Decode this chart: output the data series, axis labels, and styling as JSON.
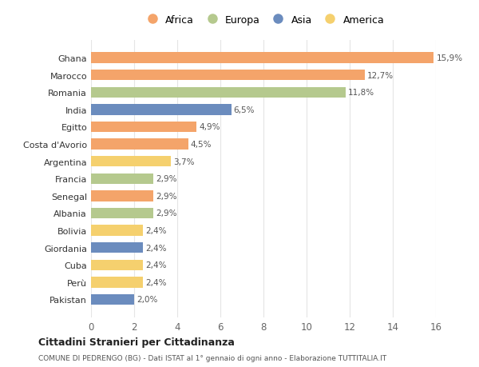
{
  "countries": [
    "Ghana",
    "Marocco",
    "Romania",
    "India",
    "Egitto",
    "Costa d'Avorio",
    "Argentina",
    "Francia",
    "Senegal",
    "Albania",
    "Bolivia",
    "Giordania",
    "Cuba",
    "Perù",
    "Pakistan"
  ],
  "values": [
    15.9,
    12.7,
    11.8,
    6.5,
    4.9,
    4.5,
    3.7,
    2.9,
    2.9,
    2.9,
    2.4,
    2.4,
    2.4,
    2.4,
    2.0
  ],
  "labels": [
    "15,9%",
    "12,7%",
    "11,8%",
    "6,5%",
    "4,9%",
    "4,5%",
    "3,7%",
    "2,9%",
    "2,9%",
    "2,9%",
    "2,4%",
    "2,4%",
    "2,4%",
    "2,4%",
    "2,0%"
  ],
  "continents": [
    "Africa",
    "Africa",
    "Europa",
    "Asia",
    "Africa",
    "Africa",
    "America",
    "Europa",
    "Africa",
    "Europa",
    "America",
    "Asia",
    "America",
    "America",
    "Asia"
  ],
  "colors": {
    "Africa": "#F4A46A",
    "Europa": "#B5C98E",
    "Asia": "#6B8CBE",
    "America": "#F5D06E"
  },
  "legend_order": [
    "Africa",
    "Europa",
    "Asia",
    "America"
  ],
  "title1": "Cittadini Stranieri per Cittadinanza",
  "title2": "COMUNE DI PEDRENGO (BG) - Dati ISTAT al 1° gennaio di ogni anno - Elaborazione TUTTITALIA.IT",
  "xlim": [
    0,
    16
  ],
  "xticks": [
    0,
    2,
    4,
    6,
    8,
    10,
    12,
    14,
    16
  ],
  "bg_color": "#FFFFFF",
  "grid_color": "#E5E5E5"
}
